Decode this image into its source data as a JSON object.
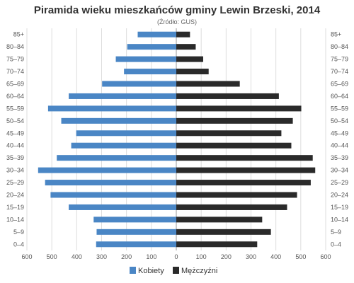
{
  "chart_data": {
    "type": "bar",
    "title": "Piramida wieku mieszkańców gminy Lewin Brzeski, 2014",
    "subtitle": "(Źródło: GUS)",
    "categories": [
      "85+",
      "80–84",
      "75–79",
      "70–74",
      "65–69",
      "60–64",
      "55–59",
      "50–54",
      "45–49",
      "40–44",
      "35–39",
      "30–34",
      "25–29",
      "20–24",
      "15–19",
      "10–14",
      "5–9",
      "0–4"
    ],
    "x_ticks": [
      "600",
      "500",
      "400",
      "300",
      "200",
      "100",
      "0",
      "100",
      "200",
      "300",
      "400",
      "500",
      "600"
    ],
    "xlim": [
      -600,
      600
    ],
    "grid": true,
    "legend_position": "bottom-center",
    "series": [
      {
        "name": "Kobiety",
        "color": "#4a86c5",
        "values": [
          155,
          197,
          243,
          210,
          298,
          432,
          515,
          462,
          402,
          422,
          480,
          555,
          527,
          505,
          432,
          332,
          320,
          322
        ]
      },
      {
        "name": "Mężczyźni",
        "color": "#2a2a2a",
        "values": [
          55,
          78,
          108,
          130,
          255,
          412,
          502,
          468,
          422,
          462,
          548,
          558,
          540,
          485,
          445,
          345,
          380,
          325
        ]
      }
    ]
  }
}
